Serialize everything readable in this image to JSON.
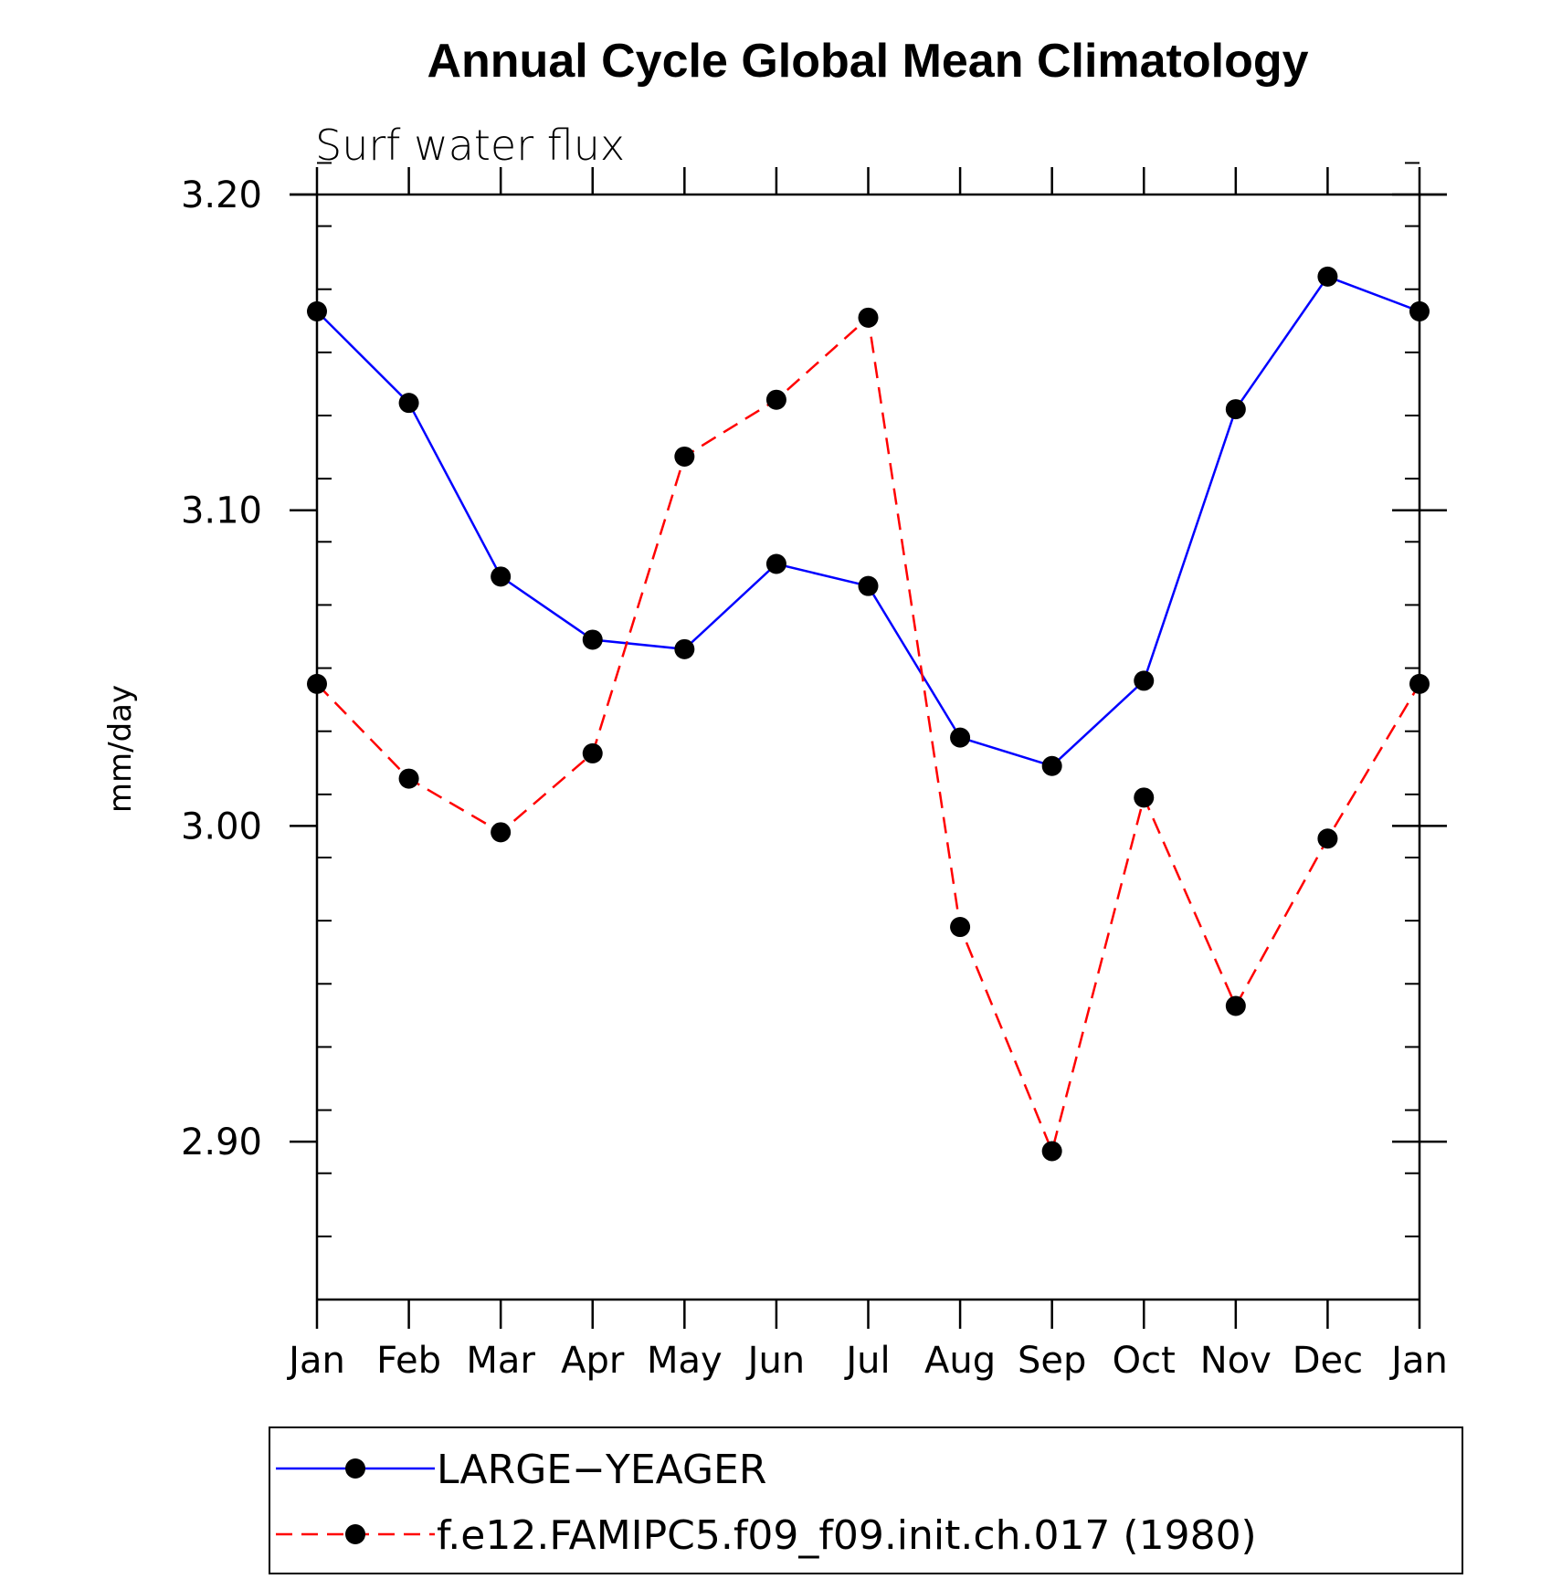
{
  "chart_data": {
    "type": "line",
    "title": "Annual Cycle Global Mean Climatology",
    "subtitle": "Surf water flux",
    "xlabel": "",
    "ylabel": "mm/day",
    "categories": [
      "Jan",
      "Feb",
      "Mar",
      "Apr",
      "May",
      "Jun",
      "Jul",
      "Aug",
      "Sep",
      "Oct",
      "Nov",
      "Dec",
      "Jan"
    ],
    "ylim": [
      2.85,
      3.2
    ],
    "yticks": [
      2.9,
      3.0,
      3.1,
      3.2
    ],
    "ytick_labels": [
      "2.90",
      "3.00",
      "3.10",
      "3.20"
    ],
    "y_minor_step": 0.02,
    "grid": false,
    "legend_position": "bottom",
    "series": [
      {
        "name": "LARGE−YEAGER",
        "color": "#0000ff",
        "dash": "solid",
        "values": [
          3.163,
          3.134,
          3.079,
          3.059,
          3.056,
          3.083,
          3.076,
          3.028,
          3.019,
          3.046,
          3.132,
          3.174,
          3.163
        ]
      },
      {
        "name": "f.e12.FAMIPC5.f09_f09.init.ch.017 (1980)",
        "color": "#ff0000",
        "dash": "dashed",
        "values": [
          3.045,
          3.015,
          2.998,
          3.023,
          3.117,
          3.135,
          3.161,
          2.968,
          2.897,
          3.009,
          2.943,
          2.996,
          3.045
        ]
      }
    ],
    "marker_color": "#000000"
  }
}
